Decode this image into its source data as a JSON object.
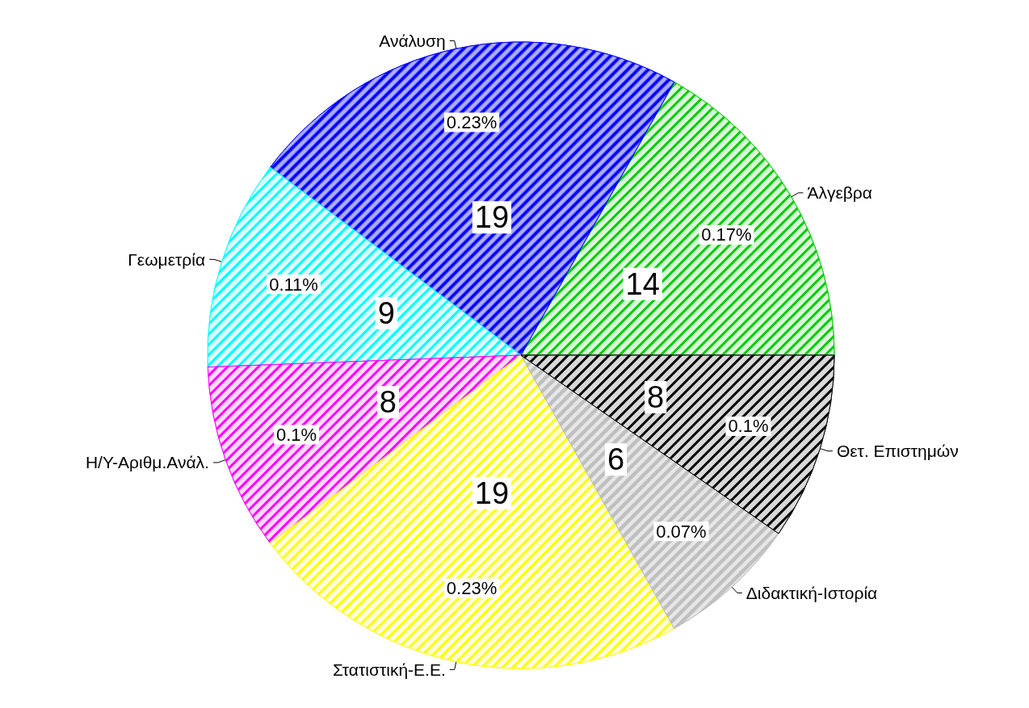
{
  "chart_data": {
    "type": "pie",
    "categories": [
      "Άλγεβρα",
      "Ανάλυση",
      "Γεωμετρία",
      "Η/Υ-Αριθμ.Ανάλ.",
      "Στατιστική-Ε.Ε.",
      "Διδακτική-Ιστορία",
      "Θετ. Επιστημών"
    ],
    "values": [
      14,
      19,
      9,
      8,
      19,
      6,
      8
    ],
    "colors": [
      "#00cd00",
      "#0000ff",
      "#00ffff",
      "#ff00ff",
      "#ffff00",
      "#bebebe",
      "#000000"
    ],
    "data_labels": true,
    "annotations": [
      {
        "text": "0.17%",
        "x": "Άλγεβρα"
      },
      {
        "text": "0.23%",
        "x": "Ανάλυση"
      },
      {
        "text": "0.11%",
        "x": "Γεωμετρία"
      },
      {
        "text": "0.1%",
        "x": "Η/Υ-Αριθμ.Ανάλ."
      },
      {
        "text": "0.23%",
        "x": "Στατιστική-Ε.Ε."
      },
      {
        "text": "0.07%",
        "x": "Διδακτική-Ιστορία"
      },
      {
        "text": "0.1%",
        "x": "Θετ. Επιστημών"
      }
    ],
    "legend": false
  }
}
